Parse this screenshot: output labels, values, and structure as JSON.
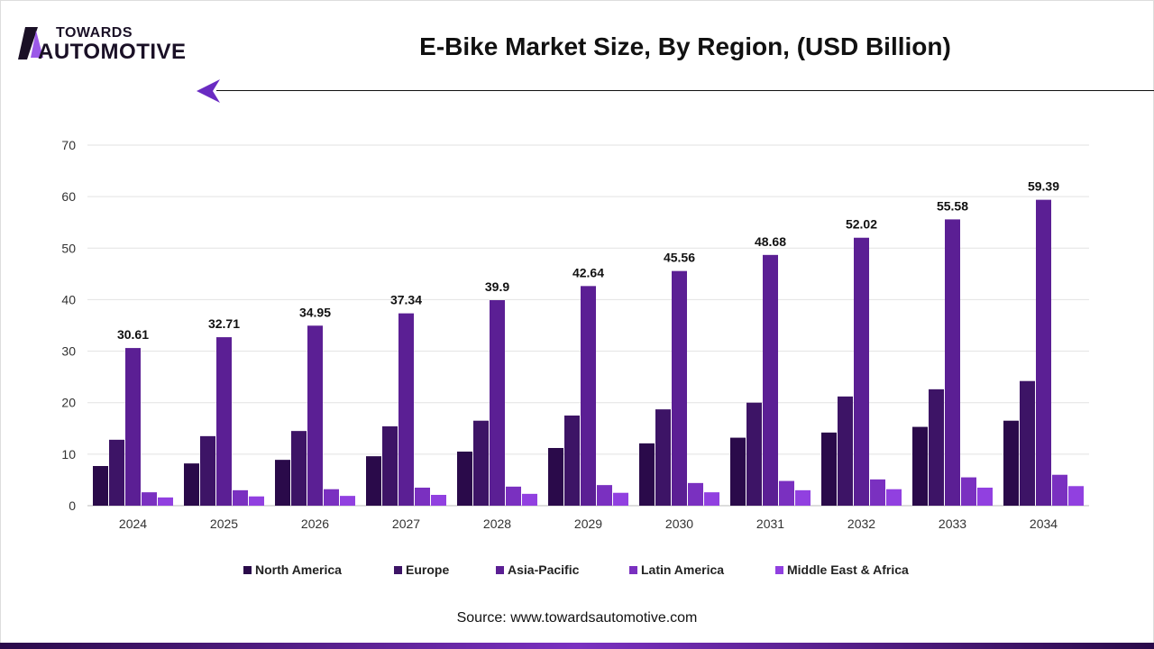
{
  "brand": {
    "line1": "TOWARDS",
    "line2": "AUTOMOTIVE"
  },
  "source": "Source: www.towardsautomotive.com",
  "chart_data": {
    "type": "bar",
    "title": "E-Bike Market Size, By Region, (USD Billion)",
    "xlabel": "",
    "ylabel": "",
    "ylim": [
      0,
      70
    ],
    "yticks": [
      0,
      10,
      20,
      30,
      40,
      50,
      60,
      70
    ],
    "grid": true,
    "legend": "bottom",
    "categories": [
      "2024",
      "2025",
      "2026",
      "2027",
      "2028",
      "2029",
      "2030",
      "2031",
      "2032",
      "2033",
      "2034"
    ],
    "series": [
      {
        "name": "North America",
        "color": "#2a0a4a",
        "values": [
          7.7,
          8.2,
          8.9,
          9.6,
          10.5,
          11.2,
          12.1,
          13.2,
          14.2,
          15.3,
          16.5
        ]
      },
      {
        "name": "Europe",
        "color": "#3d1466",
        "values": [
          12.8,
          13.5,
          14.5,
          15.4,
          16.5,
          17.5,
          18.7,
          20.0,
          21.2,
          22.6,
          24.2
        ]
      },
      {
        "name": "Asia-Pacific",
        "color": "#5b1f94",
        "values": [
          30.61,
          32.71,
          34.95,
          37.34,
          39.9,
          42.64,
          45.56,
          48.68,
          52.02,
          55.58,
          59.39
        ],
        "data_labels": [
          "30.61",
          "32.71",
          "34.95",
          "37.34",
          "39.9",
          "42.64",
          "45.56",
          "48.68",
          "52.02",
          "55.58",
          "59.39"
        ]
      },
      {
        "name": "Latin America",
        "color": "#7a30c0",
        "values": [
          2.6,
          3.0,
          3.2,
          3.5,
          3.7,
          4.0,
          4.4,
          4.8,
          5.1,
          5.5,
          6.0
        ]
      },
      {
        "name": "Middle East & Africa",
        "color": "#9140e0",
        "values": [
          1.6,
          1.8,
          1.9,
          2.1,
          2.3,
          2.5,
          2.6,
          3.0,
          3.2,
          3.5,
          3.8
        ]
      }
    ]
  }
}
